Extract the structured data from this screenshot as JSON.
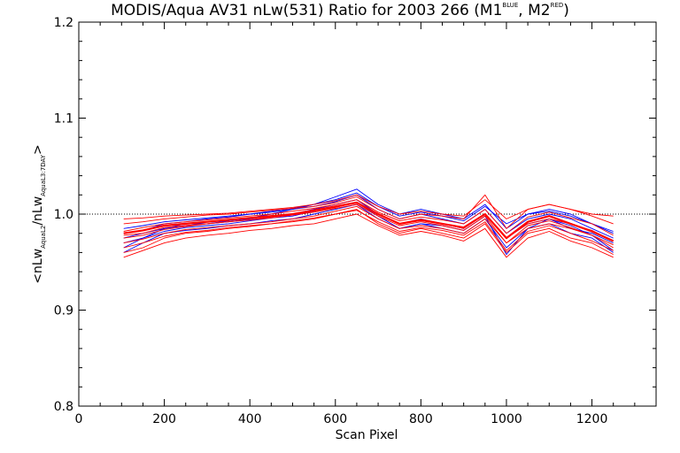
{
  "title": {
    "main": "MODIS/Aqua AV31 nLw(531) Ratio for 2003 266 (M1",
    "sup1": "BLUE",
    "mid": ", M2",
    "sup2": "RED",
    "end": ")"
  },
  "xlabel": "Scan Pixel",
  "ylabel": {
    "p1": "<nLw",
    "s1": "AquaL2",
    "p2": "/nLw",
    "s2": "AquaL3:7DAY",
    "p3": ">"
  },
  "chart_data": {
    "type": "line",
    "xlim": [
      0,
      1350
    ],
    "ylim": [
      0.8,
      1.2
    ],
    "x_ticks": [
      0,
      200,
      400,
      600,
      800,
      1000,
      1200
    ],
    "x_tick_labels": [
      "0",
      "200",
      "400",
      "600",
      "800",
      "1000",
      "1200"
    ],
    "y_ticks": [
      0.8,
      0.9,
      1.0,
      1.1,
      1.2
    ],
    "y_tick_labels": [
      "0.8",
      "0.9",
      "1.0",
      "1.1",
      "1.2"
    ],
    "reference_line": 1.0,
    "x": [
      105,
      150,
      200,
      250,
      300,
      350,
      400,
      450,
      500,
      550,
      600,
      650,
      700,
      750,
      800,
      850,
      900,
      950,
      1000,
      1050,
      1100,
      1150,
      1200,
      1250
    ],
    "series": [
      {
        "color": "#0000ff",
        "values": [
          0.965,
          0.975,
          0.985,
          0.99,
          0.99,
          0.992,
          0.995,
          0.998,
          1.0,
          1.005,
          1.01,
          1.015,
          1.0,
          0.99,
          0.995,
          0.99,
          0.985,
          1.0,
          0.975,
          0.99,
          0.995,
          0.985,
          0.98,
          0.97
        ]
      },
      {
        "color": "#0000ff",
        "values": [
          0.975,
          0.98,
          0.985,
          0.988,
          0.99,
          0.993,
          0.996,
          1.0,
          1.005,
          1.01,
          1.018,
          1.026,
          1.01,
          1.0,
          1.005,
          1.0,
          0.995,
          1.01,
          0.985,
          1.0,
          1.005,
          1.0,
          0.99,
          0.98
        ]
      },
      {
        "color": "#0000ff",
        "values": [
          0.96,
          0.97,
          0.98,
          0.983,
          0.985,
          0.988,
          0.99,
          0.993,
          0.995,
          1.0,
          1.005,
          1.01,
          0.995,
          0.985,
          0.99,
          0.985,
          0.98,
          0.995,
          0.965,
          0.985,
          0.99,
          0.98,
          0.975,
          0.96
        ]
      },
      {
        "color": "#0000ff",
        "values": [
          0.98,
          0.983,
          0.99,
          0.992,
          0.995,
          0.997,
          1.0,
          1.002,
          1.005,
          1.008,
          1.013,
          1.02,
          1.005,
          0.995,
          1.0,
          0.995,
          0.99,
          1.005,
          0.98,
          0.995,
          1.0,
          0.995,
          0.985,
          0.975
        ]
      },
      {
        "color": "#0000ff",
        "values": [
          0.97,
          0.975,
          0.982,
          0.986,
          0.988,
          0.99,
          0.993,
          0.996,
          0.998,
          1.003,
          1.008,
          1.012,
          0.998,
          0.985,
          0.99,
          0.988,
          0.983,
          0.998,
          0.958,
          0.985,
          0.995,
          0.988,
          0.978,
          0.962
        ]
      },
      {
        "color": "#0000ff",
        "values": [
          0.985,
          0.988,
          0.992,
          0.994,
          0.996,
          0.998,
          1.0,
          1.003,
          1.006,
          1.01,
          1.015,
          1.022,
          1.008,
          0.998,
          1.002,
          0.998,
          0.993,
          1.008,
          0.99,
          1.0,
          1.003,
          0.998,
          0.99,
          0.982
        ]
      },
      {
        "color": "#ff0000",
        "values": [
          0.96,
          0.965,
          0.975,
          0.98,
          0.982,
          0.985,
          0.987,
          0.99,
          0.992,
          0.995,
          1.0,
          1.005,
          0.99,
          0.98,
          0.985,
          0.98,
          0.975,
          0.99,
          0.96,
          0.98,
          0.985,
          0.975,
          0.97,
          0.958
        ]
      },
      {
        "color": "#ff0000",
        "values": [
          0.99,
          0.992,
          0.995,
          0.997,
          0.999,
          1.0,
          1.002,
          1.004,
          1.006,
          1.008,
          1.012,
          1.018,
          1.005,
          0.995,
          1.0,
          0.998,
          0.995,
          1.02,
          0.985,
          1.005,
          1.01,
          1.005,
          0.998,
          0.99
        ]
      },
      {
        "color": "#ff0000",
        "values": [
          0.97,
          0.974,
          0.98,
          0.984,
          0.986,
          0.988,
          0.99,
          0.992,
          0.995,
          0.998,
          1.003,
          1.008,
          0.995,
          0.985,
          0.988,
          0.985,
          0.98,
          0.995,
          0.97,
          0.985,
          0.99,
          0.985,
          0.978,
          0.965
        ]
      },
      {
        "color": "#ff0000",
        "values": [
          0.975,
          0.978,
          0.984,
          0.987,
          0.99,
          0.992,
          0.994,
          0.997,
          1.0,
          1.003,
          1.007,
          1.012,
          1.0,
          0.99,
          0.993,
          0.99,
          0.985,
          1.0,
          0.975,
          0.99,
          0.995,
          0.99,
          0.983,
          0.972
        ]
      },
      {
        "color": "#ff0000",
        "values": [
          0.965,
          0.97,
          0.977,
          0.981,
          0.983,
          0.986,
          0.988,
          0.99,
          0.993,
          0.996,
          1.0,
          1.004,
          0.992,
          0.982,
          0.986,
          0.983,
          0.978,
          0.992,
          0.962,
          0.982,
          0.988,
          0.98,
          0.972,
          0.962
        ]
      },
      {
        "color": "#ff0000",
        "values": [
          0.982,
          0.986,
          0.99,
          0.992,
          0.994,
          0.996,
          0.998,
          1.0,
          1.003,
          1.006,
          1.01,
          1.015,
          1.002,
          0.993,
          0.997,
          0.994,
          0.99,
          1.005,
          0.98,
          0.997,
          1.002,
          0.996,
          0.99,
          0.978
        ]
      },
      {
        "color": "#ff0000",
        "values": [
          0.955,
          0.962,
          0.97,
          0.975,
          0.978,
          0.98,
          0.983,
          0.985,
          0.988,
          0.99,
          0.995,
          1.0,
          0.988,
          0.978,
          0.982,
          0.978,
          0.972,
          0.985,
          0.955,
          0.975,
          0.982,
          0.972,
          0.965,
          0.955
        ]
      },
      {
        "color": "#ff0000",
        "values": [
          0.995,
          0.996,
          0.998,
          0.999,
          1.0,
          1.001,
          1.003,
          1.005,
          1.007,
          1.01,
          1.014,
          1.02,
          1.008,
          1.0,
          1.003,
          1.0,
          0.998,
          1.015,
          0.995,
          1.005,
          1.01,
          1.005,
          1.0,
          0.998
        ]
      },
      {
        "color": "#ff0000",
        "values": [
          0.978,
          0.98,
          0.986,
          0.988,
          0.99,
          0.992,
          0.994,
          0.996,
          0.999,
          1.002,
          1.006,
          1.01,
          0.998,
          0.988,
          0.992,
          0.988,
          0.983,
          0.998,
          0.97,
          0.988,
          0.993,
          0.986,
          0.978,
          0.968
        ]
      },
      {
        "color": "#ff0000",
        "values": [
          0.98,
          0.983,
          0.988,
          0.99,
          0.992,
          0.994,
          0.996,
          0.998,
          1.0,
          1.004,
          1.008,
          1.012,
          1.0,
          0.99,
          0.994,
          0.99,
          0.986,
          1.0,
          0.975,
          0.992,
          0.998,
          0.99,
          0.982,
          0.972
        ],
        "width": 2.2
      }
    ]
  }
}
